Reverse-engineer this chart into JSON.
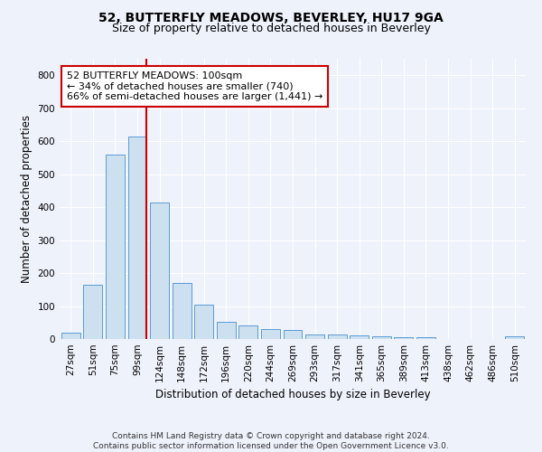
{
  "title": "52, BUTTERFLY MEADOWS, BEVERLEY, HU17 9GA",
  "subtitle": "Size of property relative to detached houses in Beverley",
  "xlabel": "Distribution of detached houses by size in Beverley",
  "ylabel": "Number of detached properties",
  "categories": [
    "27sqm",
    "51sqm",
    "75sqm",
    "99sqm",
    "124sqm",
    "148sqm",
    "172sqm",
    "196sqm",
    "220sqm",
    "244sqm",
    "269sqm",
    "293sqm",
    "317sqm",
    "341sqm",
    "365sqm",
    "389sqm",
    "413sqm",
    "438sqm",
    "462sqm",
    "486sqm",
    "510sqm"
  ],
  "values": [
    20,
    165,
    560,
    615,
    413,
    170,
    103,
    52,
    40,
    30,
    28,
    15,
    13,
    10,
    7,
    5,
    5,
    0,
    0,
    0,
    8
  ],
  "bar_color": "#cce0f0",
  "bar_edge_color": "#5b9bd5",
  "highlight_index": 3,
  "highlight_line_color": "#cc0000",
  "ylim": [
    0,
    850
  ],
  "yticks": [
    0,
    100,
    200,
    300,
    400,
    500,
    600,
    700,
    800
  ],
  "annotation_text": "52 BUTTERFLY MEADOWS: 100sqm\n← 34% of detached houses are smaller (740)\n66% of semi-detached houses are larger (1,441) →",
  "annotation_box_color": "#cc0000",
  "footer_line1": "Contains HM Land Registry data © Crown copyright and database right 2024.",
  "footer_line2": "Contains public sector information licensed under the Open Government Licence v3.0.",
  "bg_color": "#eef2fb",
  "plot_bg_color": "#eef2fb",
  "title_fontsize": 10,
  "subtitle_fontsize": 9,
  "xlabel_fontsize": 8.5,
  "ylabel_fontsize": 8.5,
  "tick_fontsize": 7.5,
  "footer_fontsize": 6.5,
  "annotation_fontsize": 8
}
